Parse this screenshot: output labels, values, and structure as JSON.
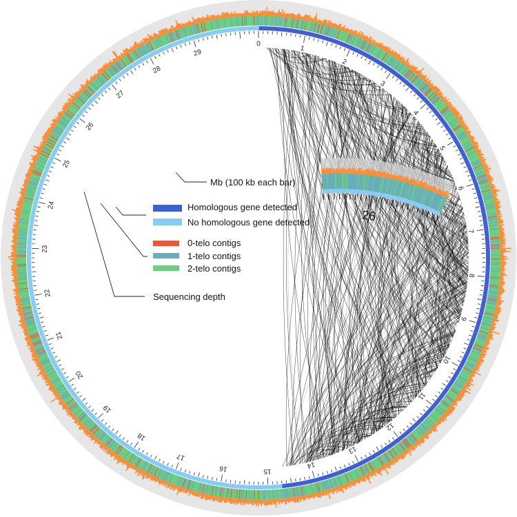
{
  "ring": {
    "tick_labels": [
      "0",
      "1",
      "2",
      "3",
      "4",
      "5",
      "6",
      "7",
      "8",
      "9",
      "10",
      "11",
      "12",
      "13",
      "14",
      "15",
      "16",
      "17",
      "18",
      "19",
      "20",
      "21",
      "22",
      "23",
      "24",
      "25",
      "26",
      "27",
      "28",
      "29"
    ]
  },
  "inset": {
    "scale_label": "26",
    "scale_caption": "Mb (100 kb each bar)"
  },
  "legend": {
    "items": [
      {
        "label": "Homologous gene detected",
        "color": "#3f5fd8"
      },
      {
        "label": "No homologous gene detected",
        "color": "#87ccf5"
      },
      {
        "label": "0-telo contigs",
        "color": "#f0553a"
      },
      {
        "label": "1-telo contigs",
        "color": "#6aacbf"
      },
      {
        "label": "2-telo contigs",
        "color": "#6ccf7e"
      }
    ],
    "depth_label": "Sequencing depth"
  },
  "colors": {
    "depth": "#f88f3b",
    "outer_band": "#e6e6e6",
    "links": "#000000"
  }
}
